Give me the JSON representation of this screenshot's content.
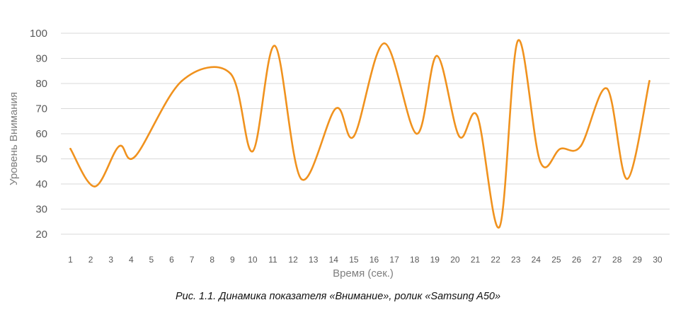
{
  "caption": "Рис. 1.1. Динамика показателя «Внимание», ролик «Samsung A50»",
  "chart_data": {
    "type": "line",
    "xlabel": "Время (сек.)",
    "ylabel": "Уровень Внимания",
    "categories": [
      "1",
      "2",
      "3",
      "4",
      "5",
      "6",
      "7",
      "8",
      "9",
      "10",
      "11",
      "12",
      "13",
      "14",
      "15",
      "16",
      "17",
      "18",
      "19",
      "20",
      "21",
      "22",
      "23",
      "24",
      "25",
      "26",
      "27",
      "28",
      "29",
      "30"
    ],
    "ylim": [
      20,
      100
    ],
    "yticks": [
      "20",
      "30",
      "40",
      "50",
      "60",
      "70",
      "80",
      "90",
      "100"
    ],
    "grid": true,
    "smooth": true,
    "series": [
      {
        "color": "#F0921E",
        "x": [
          1,
          2.2,
          3.4,
          4.2,
          6.5,
          8.9,
          10,
          11.1,
          12.4,
          14.1,
          15,
          16.5,
          18.1,
          19.1,
          20.2,
          21.1,
          22.2,
          23.1,
          24.2,
          25.2,
          26.2,
          27.5,
          28.5,
          29.6
        ],
        "y": [
          54,
          39,
          55,
          51,
          81,
          84,
          53,
          95,
          42,
          70,
          59,
          96,
          60,
          91,
          59,
          67,
          23,
          97,
          49,
          54,
          55,
          78,
          42,
          81
        ]
      }
    ]
  }
}
